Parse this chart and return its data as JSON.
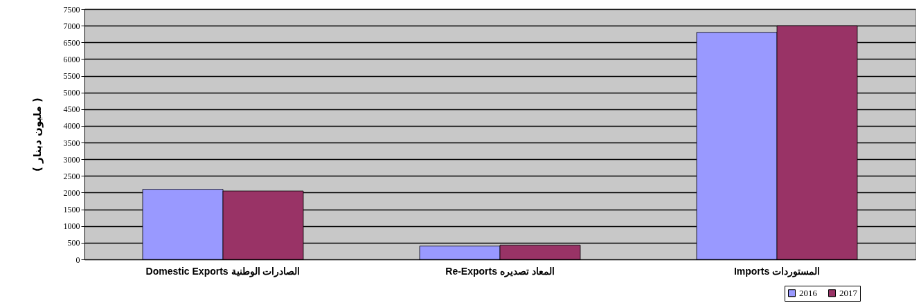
{
  "chart_data": {
    "type": "bar",
    "ylabel": "( مليون دينار )",
    "categories": [
      "Domestic Exports الصادرات الوطنية",
      "Re-Exports المعاد تصديره",
      "Imports المستوردات"
    ],
    "series": [
      {
        "name": "2016",
        "color": "#9999ff",
        "values": [
          2100,
          400,
          6800
        ]
      },
      {
        "name": "2017",
        "color": "#993366",
        "values": [
          2050,
          430,
          7000
        ]
      }
    ],
    "ylim": [
      0,
      7500
    ],
    "yticks": [
      0,
      500,
      1000,
      1500,
      2000,
      2500,
      3000,
      3500,
      4000,
      4500,
      5000,
      5500,
      6000,
      6500,
      7000,
      7500
    ],
    "grid": "y",
    "legend": "bottom right"
  }
}
